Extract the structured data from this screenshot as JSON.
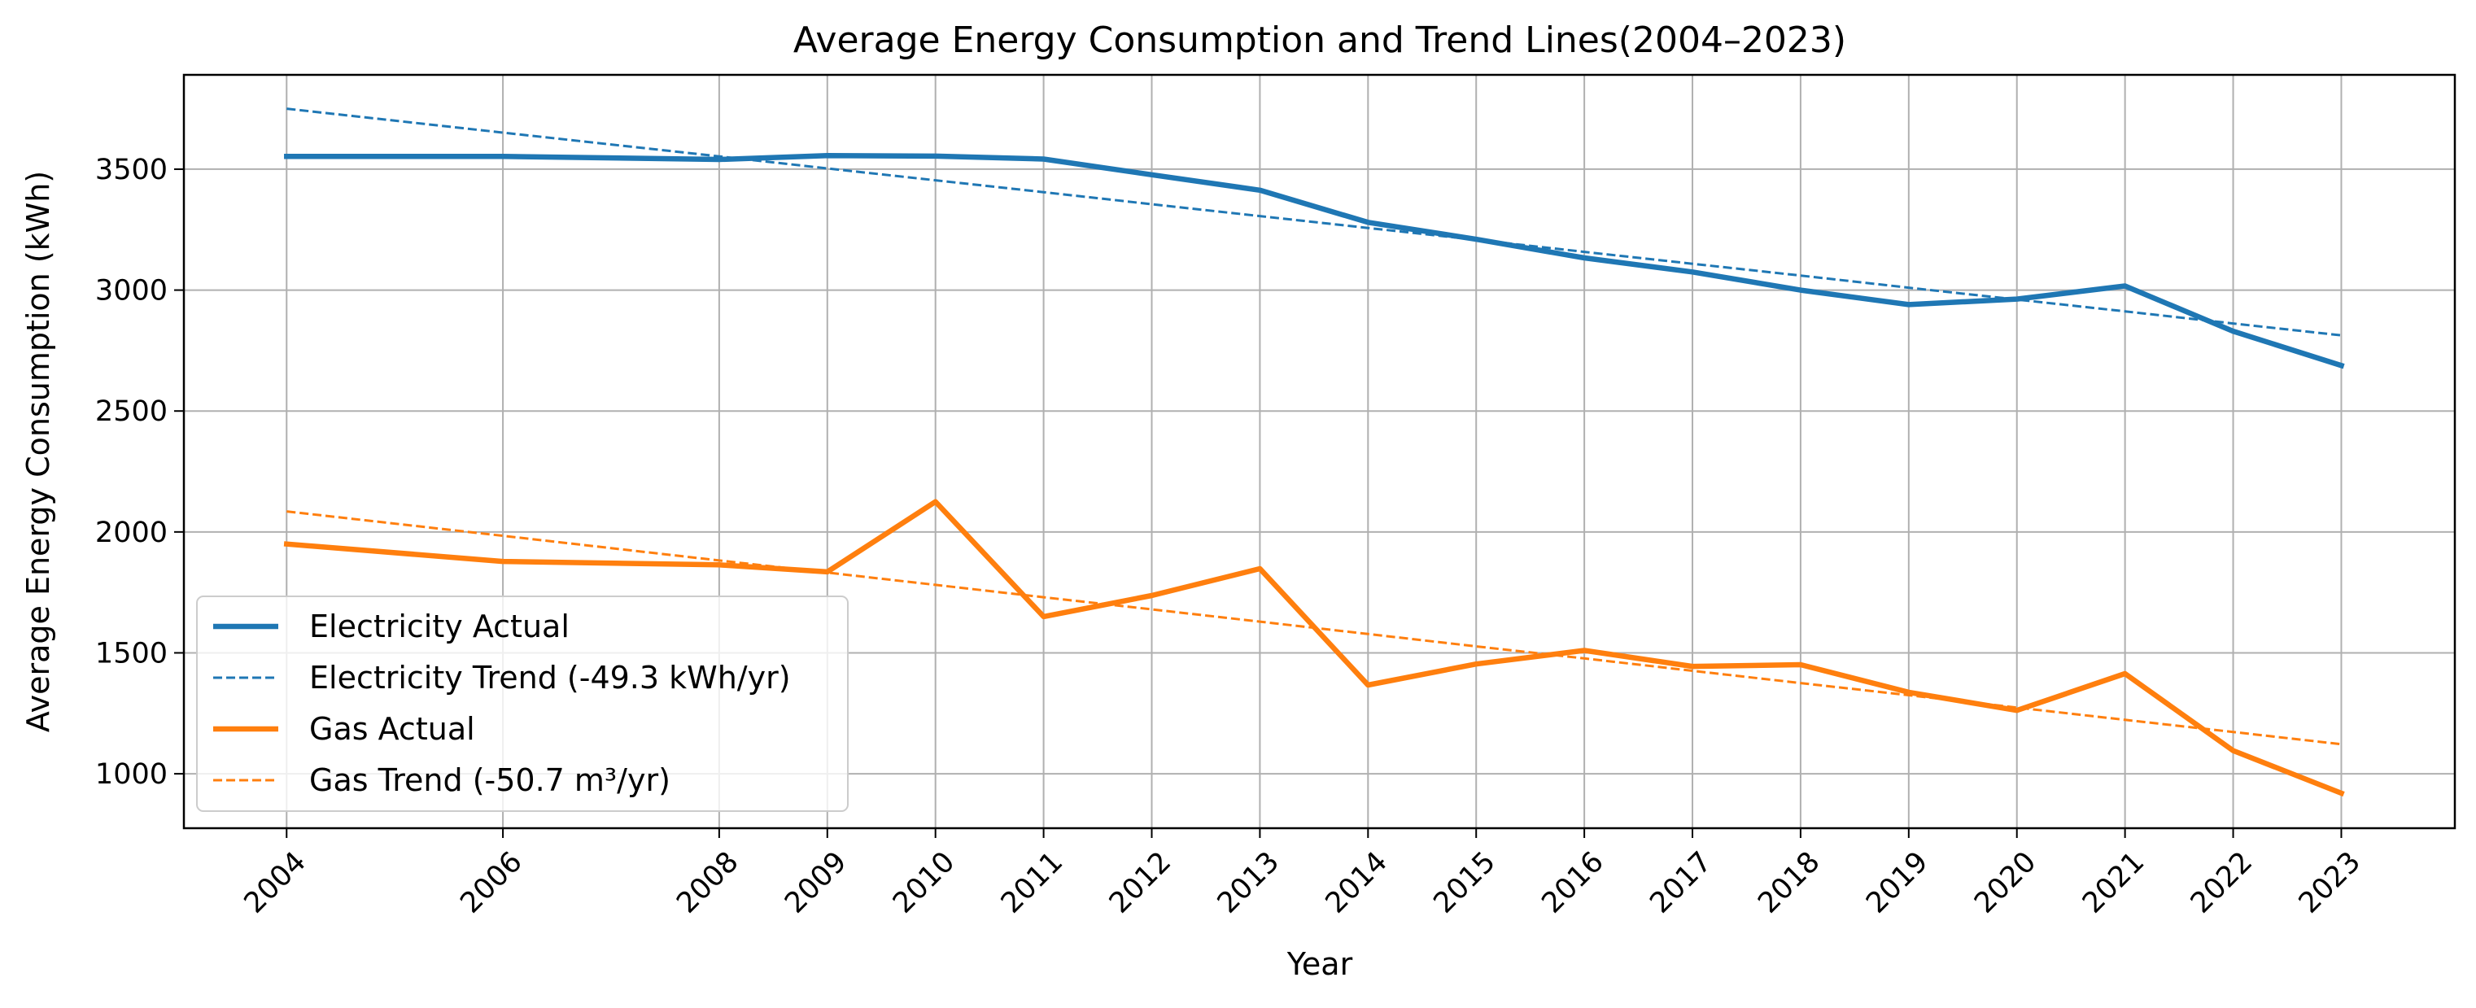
{
  "chart_data": {
    "type": "line",
    "title": "Average Energy Consumption and Trend Lines(2004–2023)",
    "xlabel": "Year",
    "ylabel": "Average Energy Consumption (kWh)",
    "x": [
      2004,
      2006,
      2008,
      2009,
      2010,
      2011,
      2012,
      2013,
      2014,
      2015,
      2016,
      2017,
      2018,
      2019,
      2020,
      2021,
      2022,
      2023
    ],
    "xticks": [
      "2004",
      "2006",
      "2008",
      "2009",
      "2010",
      "2011",
      "2012",
      "2013",
      "2014",
      "2015",
      "2016",
      "2017",
      "2018",
      "2019",
      "2020",
      "2021",
      "2022",
      "2023"
    ],
    "yticks": [
      1000,
      1500,
      2000,
      2500,
      3000,
      3500
    ],
    "xlim": [
      2003.05,
      2024.05
    ],
    "ylim": [
      775,
      3890
    ],
    "grid": true,
    "legend_position": "lower-left",
    "series": [
      {
        "name": "Electricity Actual",
        "style": "solid",
        "color": "#1f77b4",
        "values": [
          3553,
          3553,
          3540,
          3556,
          3554,
          3542,
          3477,
          3413,
          3280,
          3210,
          3133,
          3075,
          3000,
          2940,
          2963,
          3017,
          2830,
          2688
        ]
      },
      {
        "name": "Electricity Trend (-49.3 kWh/yr)",
        "style": "dashed",
        "color": "#1f77b4",
        "values": [
          3750,
          3651,
          3553,
          3503,
          3454,
          3405,
          3355,
          3306,
          3257,
          3208,
          3158,
          3109,
          3060,
          3010,
          2961,
          2912,
          2862,
          2813
        ]
      },
      {
        "name": "Gas Actual",
        "style": "solid",
        "color": "#ff7f0e",
        "values": [
          1950,
          1878,
          1864,
          1835,
          2125,
          1650,
          1737,
          1848,
          1367,
          1454,
          1510,
          1444,
          1451,
          1337,
          1262,
          1414,
          1096,
          920
        ]
      },
      {
        "name": "Gas Trend (-50.7 m³/yr)",
        "style": "dashed",
        "color": "#ff7f0e",
        "values": [
          2085,
          1984,
          1882,
          1832,
          1781,
          1730,
          1680,
          1629,
          1578,
          1527,
          1477,
          1426,
          1375,
          1325,
          1274,
          1223,
          1173,
          1122
        ]
      }
    ]
  }
}
